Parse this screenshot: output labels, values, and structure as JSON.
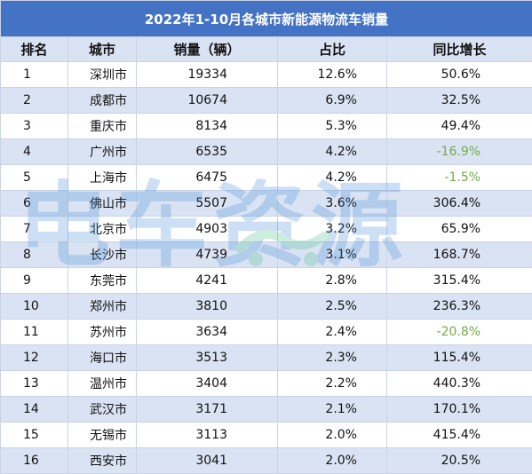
{
  "title": "2022年1-10月各城市新能源物流车销量",
  "headers": [
    "排名",
    "城市",
    "销量（辆）",
    "占比",
    "同比增长"
  ],
  "rows": [
    {
      "rank": "1",
      "city": "深圳市",
      "sales": "19334",
      "share": "12.6%",
      "yoy": "50.6%"
    },
    {
      "rank": "2",
      "city": "成都市",
      "sales": "10674",
      "share": "6.9%",
      "yoy": "32.5%"
    },
    {
      "rank": "3",
      "city": "重庆市",
      "sales": "8134",
      "share": "5.3%",
      "yoy": "49.4%"
    },
    {
      "rank": "4",
      "city": "广州市",
      "sales": "6535",
      "share": "4.2%",
      "yoy": "-16.9%"
    },
    {
      "rank": "5",
      "city": "上海市",
      "sales": "6475",
      "share": "4.2%",
      "yoy": "-1.5%"
    },
    {
      "rank": "6",
      "city": "佛山市",
      "sales": "5507",
      "share": "3.6%",
      "yoy": "306.4%"
    },
    {
      "rank": "7",
      "city": "北京市",
      "sales": "4903",
      "share": "3.2%",
      "yoy": "65.9%"
    },
    {
      "rank": "8",
      "city": "长沙市",
      "sales": "4739",
      "share": "3.1%",
      "yoy": "168.7%"
    },
    {
      "rank": "9",
      "city": "东莞市",
      "sales": "4241",
      "share": "2.8%",
      "yoy": "315.4%"
    },
    {
      "rank": "10",
      "city": "郑州市",
      "sales": "3810",
      "share": "2.5%",
      "yoy": "236.3%"
    },
    {
      "rank": "11",
      "city": "苏州市",
      "sales": "3634",
      "share": "2.4%",
      "yoy": "-20.8%"
    },
    {
      "rank": "12",
      "city": "海口市",
      "sales": "3513",
      "share": "2.3%",
      "yoy": "115.4%"
    },
    {
      "rank": "13",
      "city": "温州市",
      "sales": "3404",
      "share": "2.2%",
      "yoy": "440.3%"
    },
    {
      "rank": "14",
      "city": "武汉市",
      "sales": "3171",
      "share": "2.1%",
      "yoy": "170.1%"
    },
    {
      "rank": "15",
      "city": "无锡市",
      "sales": "3113",
      "share": "2.0%",
      "yoy": "415.4%"
    },
    {
      "rank": "16",
      "city": "西安市",
      "sales": "3041",
      "share": "2.0%",
      "yoy": "20.5%"
    }
  ],
  "watermark_text": "电车资源",
  "colors": {
    "title_bg": "#4472c4",
    "header_bg": "#dae3f3",
    "stripe_bg": "#dae3f3",
    "negative_text": "#70ad47",
    "watermark_blue": "#4a90d9",
    "watermark_green": "#4fc08d"
  }
}
